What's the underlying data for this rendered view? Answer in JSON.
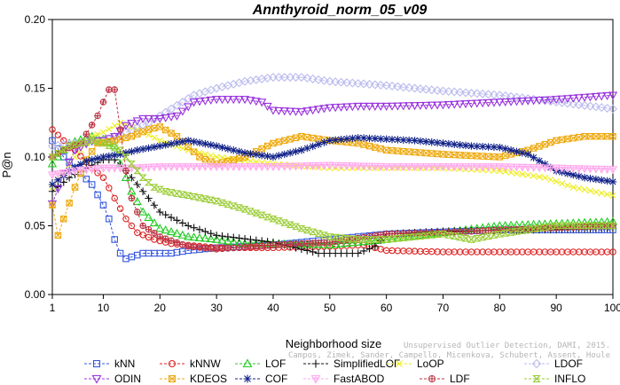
{
  "chart_data": {
    "type": "line",
    "title": "Annthyroid_norm_05_v09",
    "xlabel": "Neighborhood size",
    "ylabel": "P@n",
    "xlim": [
      1,
      100
    ],
    "ylim": [
      0,
      0.2
    ],
    "xticks": [
      1,
      10,
      20,
      30,
      40,
      50,
      60,
      70,
      80,
      90,
      100
    ],
    "yticks": [
      0.0,
      0.05,
      0.1,
      0.15,
      0.2
    ],
    "ytick_labels": [
      "0.00",
      "0.05",
      "0.10",
      "0.15",
      "0.20"
    ],
    "grid": false,
    "legend_position": "bottom",
    "watermark": [
      "Campos, Zimek, Sander, Campello, Micenkova, Schubert, Assent, Houle",
      "Unsupervised Outlier Detection, DAMI, 2015."
    ],
    "series": [
      {
        "name": "kNN",
        "color": "#3355dd",
        "marker": "square",
        "keypoints": [
          [
            1,
            0.112
          ],
          [
            3,
            0.1
          ],
          [
            5,
            0.092
          ],
          [
            8,
            0.08
          ],
          [
            10,
            0.065
          ],
          [
            11,
            0.055
          ],
          [
            12,
            0.04
          ],
          [
            13,
            0.03
          ],
          [
            14,
            0.026
          ],
          [
            17,
            0.03
          ],
          [
            22,
            0.03
          ],
          [
            25,
            0.032
          ],
          [
            30,
            0.034
          ],
          [
            40,
            0.036
          ],
          [
            50,
            0.04
          ],
          [
            60,
            0.044
          ],
          [
            80,
            0.047
          ],
          [
            100,
            0.047
          ]
        ]
      },
      {
        "name": "kNNW",
        "color": "#dd2222",
        "marker": "circle",
        "keypoints": [
          [
            1,
            0.12
          ],
          [
            3,
            0.112
          ],
          [
            5,
            0.105
          ],
          [
            8,
            0.092
          ],
          [
            10,
            0.085
          ],
          [
            12,
            0.07
          ],
          [
            14,
            0.055
          ],
          [
            16,
            0.045
          ],
          [
            19,
            0.04
          ],
          [
            22,
            0.037
          ],
          [
            30,
            0.034
          ],
          [
            40,
            0.034
          ],
          [
            50,
            0.035
          ],
          [
            56,
            0.036
          ],
          [
            58,
            0.034
          ],
          [
            60,
            0.032
          ],
          [
            70,
            0.031
          ],
          [
            100,
            0.031
          ]
        ]
      },
      {
        "name": "LOF",
        "color": "#22cc22",
        "marker": "triangle-up",
        "keypoints": [
          [
            1,
            0.095
          ],
          [
            4,
            0.11
          ],
          [
            8,
            0.115
          ],
          [
            10,
            0.113
          ],
          [
            12,
            0.108
          ],
          [
            13,
            0.095
          ],
          [
            15,
            0.075
          ],
          [
            17,
            0.06
          ],
          [
            20,
            0.048
          ],
          [
            25,
            0.042
          ],
          [
            30,
            0.04
          ],
          [
            35,
            0.037
          ],
          [
            40,
            0.037
          ],
          [
            50,
            0.036
          ],
          [
            60,
            0.04
          ],
          [
            70,
            0.045
          ],
          [
            80,
            0.05
          ],
          [
            100,
            0.053
          ]
        ]
      },
      {
        "name": "SimplifiedLOF",
        "color": "#111111",
        "marker": "plus",
        "keypoints": [
          [
            1,
            0.075
          ],
          [
            4,
            0.085
          ],
          [
            7,
            0.092
          ],
          [
            10,
            0.098
          ],
          [
            12,
            0.098
          ],
          [
            14,
            0.09
          ],
          [
            16,
            0.08
          ],
          [
            18,
            0.07
          ],
          [
            20,
            0.06
          ],
          [
            25,
            0.05
          ],
          [
            30,
            0.043
          ],
          [
            40,
            0.038
          ],
          [
            45,
            0.033
          ],
          [
            48,
            0.03
          ],
          [
            55,
            0.03
          ],
          [
            58,
            0.035
          ],
          [
            60,
            0.044
          ],
          [
            70,
            0.046
          ],
          [
            100,
            0.048
          ]
        ]
      },
      {
        "name": "LoOP",
        "color": "#eeee22",
        "marker": "x",
        "keypoints": [
          [
            1,
            0.078
          ],
          [
            5,
            0.1
          ],
          [
            8,
            0.115
          ],
          [
            10,
            0.118
          ],
          [
            13,
            0.125
          ],
          [
            16,
            0.12
          ],
          [
            20,
            0.112
          ],
          [
            25,
            0.105
          ],
          [
            30,
            0.1
          ],
          [
            40,
            0.095
          ],
          [
            50,
            0.092
          ],
          [
            60,
            0.092
          ],
          [
            70,
            0.092
          ],
          [
            80,
            0.09
          ],
          [
            88,
            0.085
          ],
          [
            93,
            0.078
          ],
          [
            100,
            0.072
          ]
        ]
      },
      {
        "name": "LDOF",
        "color": "#bbbbee",
        "marker": "diamond",
        "keypoints": [
          [
            1,
            0.108
          ],
          [
            5,
            0.11
          ],
          [
            10,
            0.112
          ],
          [
            14,
            0.118
          ],
          [
            18,
            0.125
          ],
          [
            22,
            0.135
          ],
          [
            26,
            0.145
          ],
          [
            30,
            0.15
          ],
          [
            35,
            0.155
          ],
          [
            40,
            0.158
          ],
          [
            45,
            0.158
          ],
          [
            50,
            0.155
          ],
          [
            60,
            0.152
          ],
          [
            70,
            0.148
          ],
          [
            80,
            0.145
          ],
          [
            90,
            0.14
          ],
          [
            100,
            0.135
          ]
        ]
      },
      {
        "name": "ODIN",
        "color": "#9933dd",
        "marker": "triangle-down",
        "keypoints": [
          [
            1,
            0.066
          ],
          [
            3,
            0.088
          ],
          [
            5,
            0.105
          ],
          [
            8,
            0.112
          ],
          [
            10,
            0.112
          ],
          [
            12,
            0.115
          ],
          [
            14,
            0.123
          ],
          [
            17,
            0.128
          ],
          [
            20,
            0.128
          ],
          [
            23,
            0.13
          ],
          [
            26,
            0.14
          ],
          [
            30,
            0.142
          ],
          [
            35,
            0.142
          ],
          [
            38,
            0.14
          ],
          [
            40,
            0.134
          ],
          [
            45,
            0.133
          ],
          [
            50,
            0.136
          ],
          [
            55,
            0.137
          ],
          [
            60,
            0.137
          ],
          [
            70,
            0.138
          ],
          [
            80,
            0.14
          ],
          [
            90,
            0.142
          ],
          [
            100,
            0.145
          ]
        ]
      },
      {
        "name": "KDEOS",
        "color": "#eeaa11",
        "marker": "square-x",
        "keypoints": [
          [
            1,
            0.065
          ],
          [
            2,
            0.043
          ],
          [
            3,
            0.055
          ],
          [
            5,
            0.078
          ],
          [
            7,
            0.098
          ],
          [
            9,
            0.11
          ],
          [
            12,
            0.112
          ],
          [
            15,
            0.115
          ],
          [
            18,
            0.12
          ],
          [
            20,
            0.122
          ],
          [
            23,
            0.115
          ],
          [
            27,
            0.1
          ],
          [
            30,
            0.095
          ],
          [
            35,
            0.1
          ],
          [
            40,
            0.11
          ],
          [
            45,
            0.115
          ],
          [
            50,
            0.112
          ],
          [
            55,
            0.11
          ],
          [
            60,
            0.105
          ],
          [
            70,
            0.102
          ],
          [
            80,
            0.1
          ],
          [
            85,
            0.105
          ],
          [
            90,
            0.112
          ],
          [
            95,
            0.115
          ],
          [
            100,
            0.115
          ]
        ]
      },
      {
        "name": "COF",
        "color": "#112288",
        "marker": "asterisk",
        "keypoints": [
          [
            1,
            0.08
          ],
          [
            4,
            0.09
          ],
          [
            7,
            0.097
          ],
          [
            10,
            0.1
          ],
          [
            13,
            0.102
          ],
          [
            16,
            0.105
          ],
          [
            20,
            0.108
          ],
          [
            25,
            0.112
          ],
          [
            30,
            0.108
          ],
          [
            35,
            0.103
          ],
          [
            40,
            0.1
          ],
          [
            45,
            0.105
          ],
          [
            50,
            0.112
          ],
          [
            55,
            0.114
          ],
          [
            60,
            0.113
          ],
          [
            65,
            0.112
          ],
          [
            70,
            0.11
          ],
          [
            75,
            0.108
          ],
          [
            80,
            0.107
          ],
          [
            85,
            0.102
          ],
          [
            90,
            0.09
          ],
          [
            95,
            0.085
          ],
          [
            100,
            0.082
          ]
        ]
      },
      {
        "name": "FastABOD",
        "color": "#ffaaee",
        "marker": "triangle-down-plus",
        "keypoints": [
          [
            1,
            0.087
          ],
          [
            5,
            0.09
          ],
          [
            10,
            0.092
          ],
          [
            15,
            0.092
          ],
          [
            20,
            0.093
          ],
          [
            30,
            0.093
          ],
          [
            40,
            0.093
          ],
          [
            50,
            0.094
          ],
          [
            60,
            0.093
          ],
          [
            70,
            0.093
          ],
          [
            80,
            0.093
          ],
          [
            90,
            0.092
          ],
          [
            100,
            0.091
          ]
        ]
      },
      {
        "name": "LDF",
        "color": "#bb3344",
        "marker": "circle-plus",
        "keypoints": [
          [
            1,
            0.1
          ],
          [
            3,
            0.105
          ],
          [
            6,
            0.11
          ],
          [
            9,
            0.13
          ],
          [
            10,
            0.14
          ],
          [
            11,
            0.149
          ],
          [
            12,
            0.149
          ],
          [
            13,
            0.12
          ],
          [
            14,
            0.09
          ],
          [
            15,
            0.07
          ],
          [
            17,
            0.05
          ],
          [
            20,
            0.042
          ],
          [
            25,
            0.035
          ],
          [
            30,
            0.033
          ],
          [
            40,
            0.036
          ],
          [
            50,
            0.038
          ],
          [
            60,
            0.044
          ],
          [
            70,
            0.045
          ],
          [
            80,
            0.047
          ],
          [
            100,
            0.05
          ]
        ]
      },
      {
        "name": "INFLO",
        "color": "#99cc33",
        "marker": "hourglass",
        "keypoints": [
          [
            1,
            0.1
          ],
          [
            4,
            0.108
          ],
          [
            8,
            0.112
          ],
          [
            10,
            0.11
          ],
          [
            13,
            0.105
          ],
          [
            15,
            0.095
          ],
          [
            17,
            0.085
          ],
          [
            19,
            0.078
          ],
          [
            21,
            0.075
          ],
          [
            25,
            0.072
          ],
          [
            30,
            0.068
          ],
          [
            35,
            0.062
          ],
          [
            40,
            0.055
          ],
          [
            45,
            0.048
          ],
          [
            50,
            0.042
          ],
          [
            55,
            0.04
          ],
          [
            60,
            0.04
          ],
          [
            65,
            0.042
          ],
          [
            70,
            0.044
          ],
          [
            75,
            0.04
          ],
          [
            80,
            0.044
          ],
          [
            85,
            0.047
          ],
          [
            90,
            0.05
          ],
          [
            95,
            0.05
          ],
          [
            100,
            0.05
          ]
        ]
      }
    ]
  }
}
